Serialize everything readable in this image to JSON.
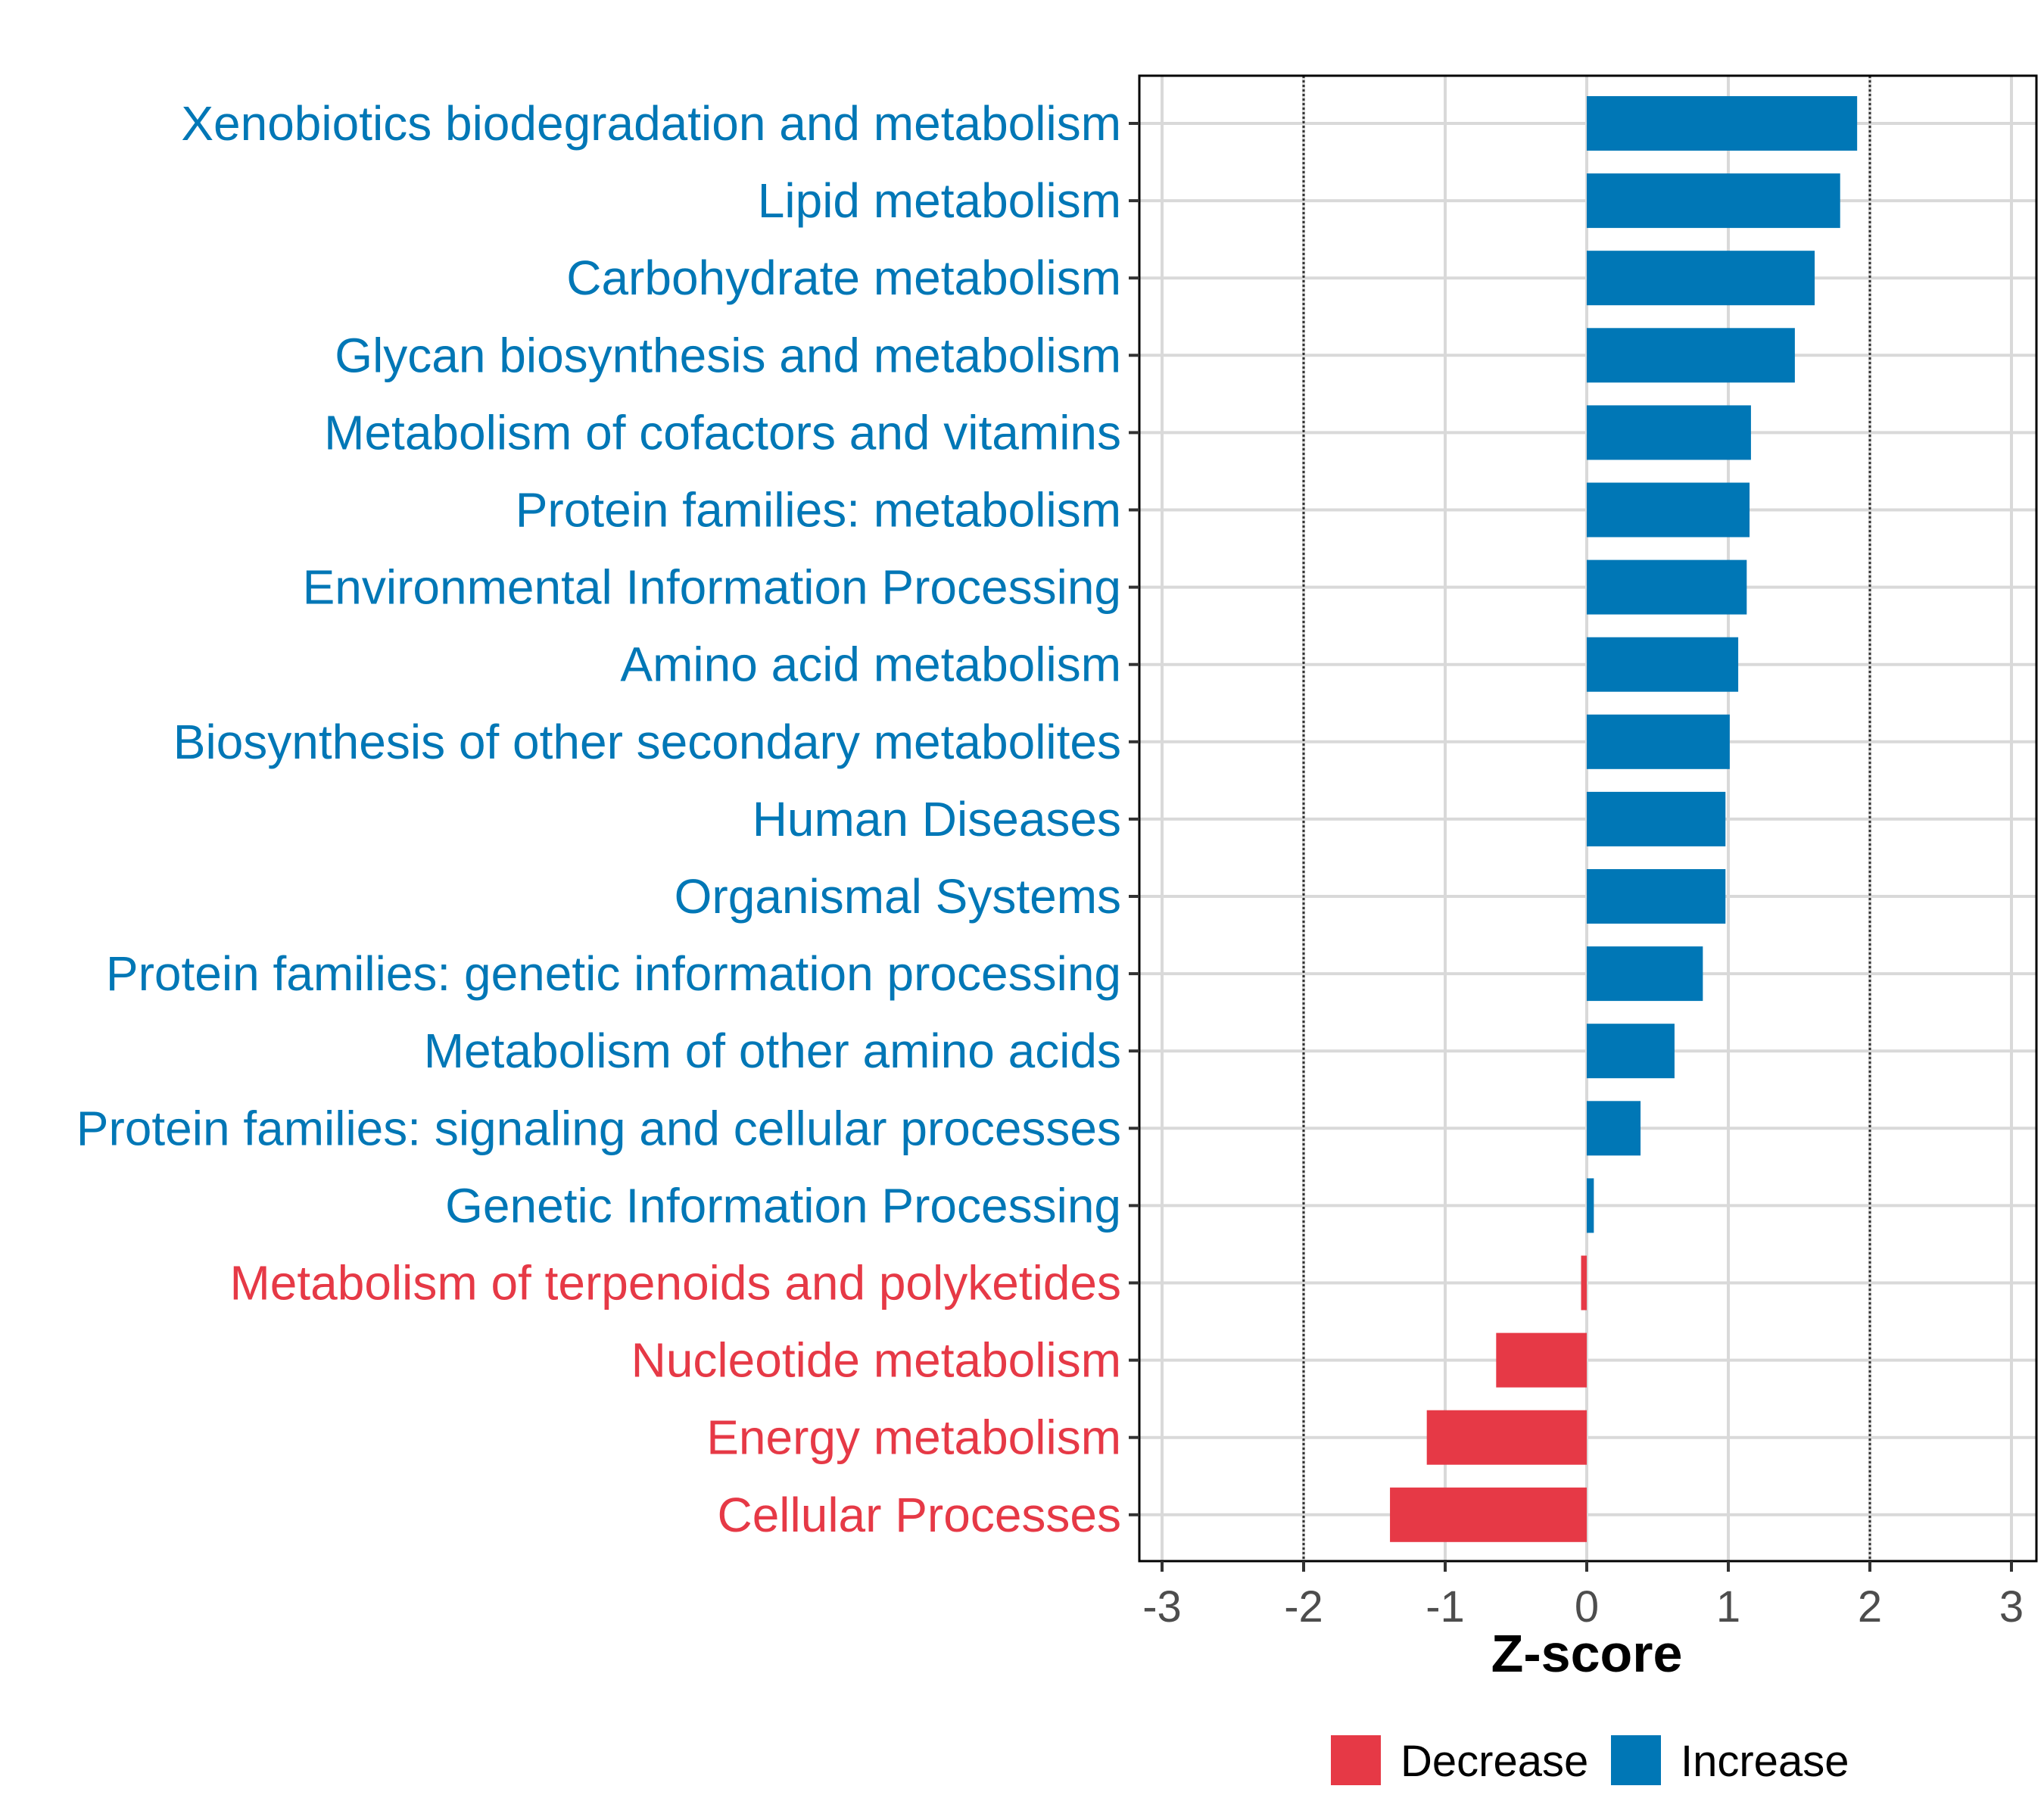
{
  "chart_data": {
    "type": "bar",
    "orientation": "horizontal",
    "xlabel": "Z-score",
    "xlim": [
      -3.1,
      3.1
    ],
    "xticks": [
      "-3",
      "-2",
      "-1",
      "0",
      "1",
      "2",
      "3"
    ],
    "reference_lines": [
      -2,
      2
    ],
    "colors": {
      "Decrease": "#e63946",
      "Increase": "#0077b6"
    },
    "categories": [
      "Xenobiotics biodegradation and metabolism",
      "Lipid metabolism",
      "Carbohydrate metabolism",
      "Glycan biosynthesis and metabolism",
      "Metabolism of cofactors and vitamins",
      "Protein families: metabolism",
      "Environmental Information Processing",
      "Amino acid metabolism",
      "Biosynthesis of other secondary metabolites",
      "Human Diseases",
      "Organismal Systems",
      "Protein families: genetic information processing",
      "Metabolism of other amino acids",
      "Protein families: signaling and cellular processes",
      "Genetic Information Processing",
      "Metabolism of terpenoids and polyketides",
      "Nucleotide metabolism",
      "Energy metabolism",
      "Cellular Processes"
    ],
    "values": [
      1.91,
      1.79,
      1.61,
      1.47,
      1.16,
      1.15,
      1.13,
      1.07,
      1.01,
      0.98,
      0.98,
      0.82,
      0.62,
      0.38,
      0.05,
      -0.04,
      -0.64,
      -1.13,
      -1.39
    ],
    "groups": [
      "Increase",
      "Increase",
      "Increase",
      "Increase",
      "Increase",
      "Increase",
      "Increase",
      "Increase",
      "Increase",
      "Increase",
      "Increase",
      "Increase",
      "Increase",
      "Increase",
      "Increase",
      "Decrease",
      "Decrease",
      "Decrease",
      "Decrease"
    ],
    "legend": [
      "Decrease",
      "Increase"
    ]
  }
}
